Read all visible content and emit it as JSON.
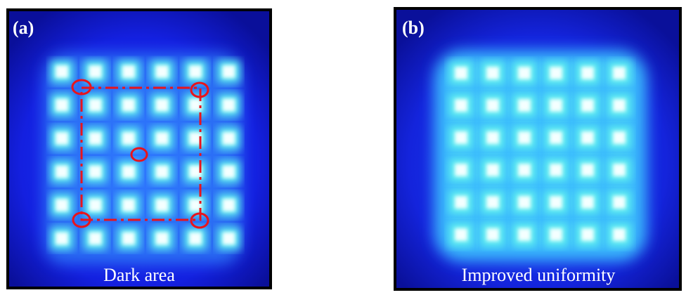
{
  "panels": [
    {
      "label": "(a)",
      "caption": "Dark area"
    },
    {
      "label": "(b)",
      "caption": "Improved uniformity"
    }
  ]
}
